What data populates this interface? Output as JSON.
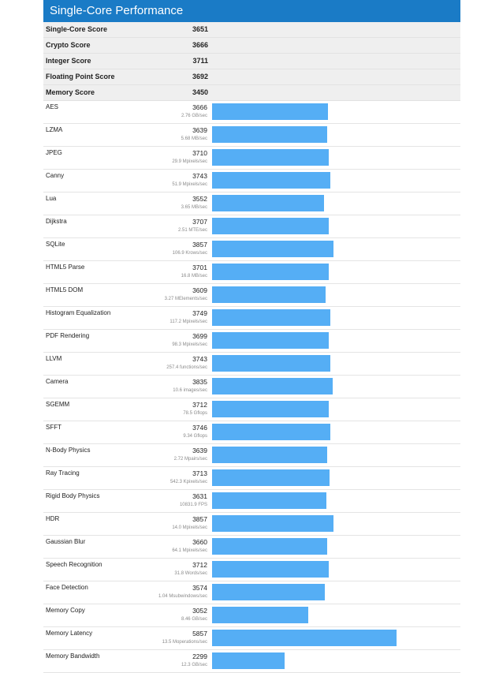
{
  "panel": {
    "title": "Single-Core Performance",
    "bar_color": "#55aef5",
    "header_color": "#1a7bc6"
  },
  "summary": [
    {
      "label": "Single-Core Score",
      "value": "3651"
    },
    {
      "label": "Crypto Score",
      "value": "3666"
    },
    {
      "label": "Integer Score",
      "value": "3711"
    },
    {
      "label": "Floating Point Score",
      "value": "3692"
    },
    {
      "label": "Memory Score",
      "value": "3450"
    }
  ],
  "bar_scale_max": 7500,
  "tests": [
    {
      "name": "AES",
      "score": 3666,
      "unit": "2.76 GB/sec"
    },
    {
      "name": "LZMA",
      "score": 3639,
      "unit": "5.68 MB/sec"
    },
    {
      "name": "JPEG",
      "score": 3710,
      "unit": "29.9 Mpixels/sec"
    },
    {
      "name": "Canny",
      "score": 3743,
      "unit": "51.9 Mpixels/sec"
    },
    {
      "name": "Lua",
      "score": 3552,
      "unit": "3.65 MB/sec"
    },
    {
      "name": "Dijkstra",
      "score": 3707,
      "unit": "2.51 MTE/sec"
    },
    {
      "name": "SQLite",
      "score": 3857,
      "unit": "106.9 Krows/sec"
    },
    {
      "name": "HTML5 Parse",
      "score": 3701,
      "unit": "16.8 MB/sec"
    },
    {
      "name": "HTML5 DOM",
      "score": 3609,
      "unit": "3.27 MElements/sec"
    },
    {
      "name": "Histogram Equalization",
      "score": 3749,
      "unit": "117.2 Mpixels/sec"
    },
    {
      "name": "PDF Rendering",
      "score": 3699,
      "unit": "98.3 Mpixels/sec"
    },
    {
      "name": "LLVM",
      "score": 3743,
      "unit": "257.4 functions/sec"
    },
    {
      "name": "Camera",
      "score": 3835,
      "unit": "10.6 images/sec"
    },
    {
      "name": "SGEMM",
      "score": 3712,
      "unit": "78.5 Gflops"
    },
    {
      "name": "SFFT",
      "score": 3746,
      "unit": "9.34 Gflops"
    },
    {
      "name": "N-Body Physics",
      "score": 3639,
      "unit": "2.72 Mpairs/sec"
    },
    {
      "name": "Ray Tracing",
      "score": 3713,
      "unit": "542.3 Kpixels/sec"
    },
    {
      "name": "Rigid Body Physics",
      "score": 3631,
      "unit": "10831.9 FPS"
    },
    {
      "name": "HDR",
      "score": 3857,
      "unit": "14.0 Mpixels/sec"
    },
    {
      "name": "Gaussian Blur",
      "score": 3660,
      "unit": "64.1 Mpixels/sec"
    },
    {
      "name": "Speech Recognition",
      "score": 3712,
      "unit": "31.8 Words/sec"
    },
    {
      "name": "Face Detection",
      "score": 3574,
      "unit": "1.04 Msubwindows/sec"
    },
    {
      "name": "Memory Copy",
      "score": 3052,
      "unit": "8.46 GB/sec"
    },
    {
      "name": "Memory Latency",
      "score": 5857,
      "unit": "13.5 Moperations/sec"
    },
    {
      "name": "Memory Bandwidth",
      "score": 2299,
      "unit": "12.3 GB/sec"
    }
  ]
}
